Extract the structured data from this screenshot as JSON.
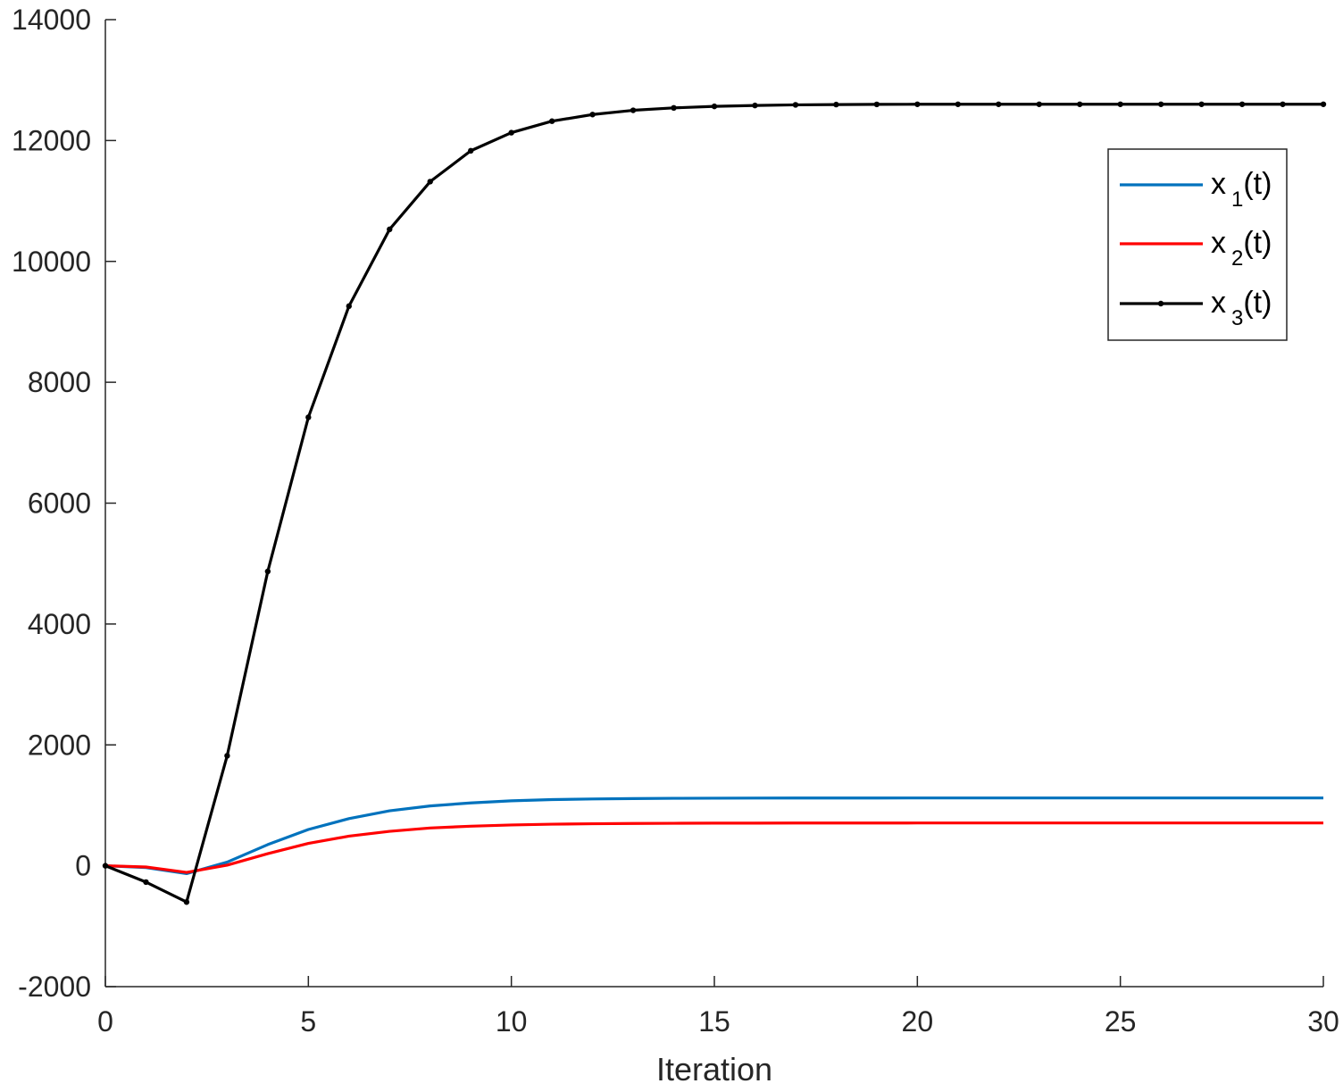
{
  "chart_data": {
    "type": "line",
    "title": "",
    "xlabel": "Iteration",
    "ylabel": "",
    "xlim": [
      0,
      30
    ],
    "ylim": [
      -2000,
      14000
    ],
    "xticks": [
      0,
      5,
      10,
      15,
      20,
      25,
      30
    ],
    "xtick_labels": [
      "0",
      "5",
      "10",
      "15",
      "20",
      "25",
      "30"
    ],
    "yticks": [
      -2000,
      0,
      2000,
      4000,
      6000,
      8000,
      10000,
      12000,
      14000
    ],
    "ytick_labels": [
      "-2000",
      "0",
      "2000",
      "4000",
      "6000",
      "8000",
      "10000",
      "12000",
      "14000"
    ],
    "grid": false,
    "legend_position": "top-right",
    "x": [
      0,
      1,
      2,
      3,
      4,
      5,
      6,
      7,
      8,
      9,
      10,
      11,
      12,
      13,
      14,
      15,
      16,
      17,
      18,
      19,
      20,
      21,
      22,
      23,
      24,
      25,
      26,
      27,
      28,
      29,
      30
    ],
    "series": [
      {
        "name": "x_1(t)",
        "name_main": "x",
        "name_sub": "1",
        "name_suffix": "(t)",
        "color": "#0072BD",
        "marker": "none",
        "values": [
          0,
          -30,
          -130,
          60,
          350,
          600,
          780,
          910,
          990,
          1040,
          1075,
          1095,
          1105,
          1112,
          1116,
          1118,
          1120,
          1121,
          1121,
          1121,
          1122,
          1122,
          1122,
          1122,
          1122,
          1122,
          1122,
          1122,
          1122,
          1122,
          1122
        ]
      },
      {
        "name": "x_2(t)",
        "name_main": "x",
        "name_sub": "2",
        "name_suffix": "(t)",
        "color": "#FF0000",
        "marker": "none",
        "values": [
          0,
          -20,
          -110,
          10,
          200,
          370,
          490,
          570,
          625,
          655,
          675,
          688,
          695,
          700,
          703,
          705,
          706,
          707,
          707,
          707,
          708,
          708,
          708,
          708,
          708,
          708,
          708,
          708,
          708,
          708,
          708
        ]
      },
      {
        "name": "x_3(t)",
        "name_main": "x",
        "name_sub": "3",
        "name_suffix": "(t)",
        "color": "#000000",
        "marker": "dot",
        "values": [
          0,
          -270,
          -600,
          1820,
          4870,
          7420,
          9260,
          10530,
          11320,
          11830,
          12130,
          12320,
          12430,
          12500,
          12540,
          12565,
          12580,
          12590,
          12595,
          12598,
          12600,
          12600,
          12600,
          12600,
          12600,
          12600,
          12600,
          12600,
          12600,
          12600,
          12600
        ]
      }
    ]
  }
}
